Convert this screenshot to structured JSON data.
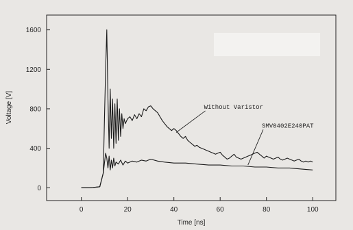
{
  "chart_data": {
    "type": "line",
    "title": "",
    "xlabel": "Time [ns]",
    "ylabel": "Voltage [V]",
    "xlim": [
      -15,
      110
    ],
    "ylim": [
      -130,
      1750
    ],
    "x_ticks": [
      0,
      20,
      40,
      60,
      80,
      100
    ],
    "y_ticks": [
      0,
      400,
      800,
      1200,
      1600
    ],
    "grid": false,
    "legend": "none",
    "series": [
      {
        "name": "Without Varistor",
        "color": "#1a1a1a",
        "x": [
          0,
          4,
          8,
          9.5,
          10,
          10.5,
          11,
          11.5,
          12,
          12.5,
          13,
          13.5,
          14,
          14.5,
          15,
          15.5,
          16,
          16.5,
          17,
          17.5,
          18,
          18.5,
          19,
          20,
          21,
          22,
          23,
          24,
          25,
          26,
          27,
          28,
          29,
          30,
          31,
          32,
          33,
          34,
          35,
          36,
          37,
          38,
          39,
          40,
          41,
          42,
          43,
          44,
          45,
          46,
          47,
          48,
          49,
          50,
          51,
          52,
          53,
          54,
          55,
          56,
          57,
          58,
          59,
          60,
          61,
          62,
          63,
          64,
          65,
          66,
          67,
          68,
          69,
          70,
          71,
          72,
          73,
          74,
          75,
          76,
          77,
          78,
          79,
          80,
          81,
          82,
          83,
          84,
          85,
          86,
          87,
          88,
          89,
          90,
          91,
          92,
          93,
          94,
          95,
          96,
          97,
          98,
          99,
          100
        ],
        "y": [
          0,
          0,
          10,
          150,
          700,
          1200,
          1600,
          900,
          400,
          1000,
          500,
          900,
          400,
          850,
          450,
          900,
          480,
          800,
          520,
          750,
          600,
          700,
          650,
          700,
          720,
          680,
          740,
          700,
          750,
          720,
          800,
          780,
          820,
          830,
          800,
          780,
          760,
          720,
          680,
          650,
          620,
          600,
          580,
          600,
          580,
          550,
          520,
          500,
          520,
          480,
          460,
          440,
          420,
          430,
          410,
          400,
          390,
          380,
          370,
          360,
          350,
          340,
          350,
          360,
          330,
          310,
          290,
          300,
          320,
          340,
          310,
          300,
          290,
          300,
          310,
          320,
          330,
          340,
          350,
          360,
          340,
          320,
          300,
          320,
          310,
          300,
          290,
          300,
          310,
          290,
          280,
          290,
          300,
          290,
          280,
          270,
          280,
          290,
          270,
          260,
          270,
          260,
          270,
          260
        ]
      },
      {
        "name": "SMV0402E240PAT",
        "color": "#1a1a1a",
        "x": [
          0,
          4,
          8,
          9.5,
          10,
          10.5,
          11,
          11.5,
          12,
          12.5,
          13,
          13.5,
          14,
          14.5,
          15,
          16,
          17,
          18,
          19,
          20,
          22,
          24,
          26,
          28,
          30,
          33,
          36,
          40,
          45,
          50,
          55,
          60,
          65,
          70,
          75,
          80,
          85,
          90,
          95,
          100
        ],
        "y": [
          0,
          0,
          10,
          150,
          250,
          350,
          300,
          200,
          320,
          180,
          280,
          200,
          300,
          220,
          260,
          240,
          280,
          230,
          270,
          250,
          270,
          260,
          280,
          270,
          290,
          270,
          260,
          250,
          250,
          240,
          230,
          230,
          220,
          220,
          210,
          210,
          200,
          200,
          190,
          180
        ]
      }
    ],
    "annotations": [
      {
        "text": "Without Varistor",
        "text_x": 53,
        "text_y": 800,
        "arrow_to_x": 41,
        "arrow_to_y": 560
      },
      {
        "text": "SMV0402E240PAT",
        "text_x": 78,
        "text_y": 610,
        "arrow_to_x": 72,
        "arrow_to_y": 230
      }
    ]
  }
}
